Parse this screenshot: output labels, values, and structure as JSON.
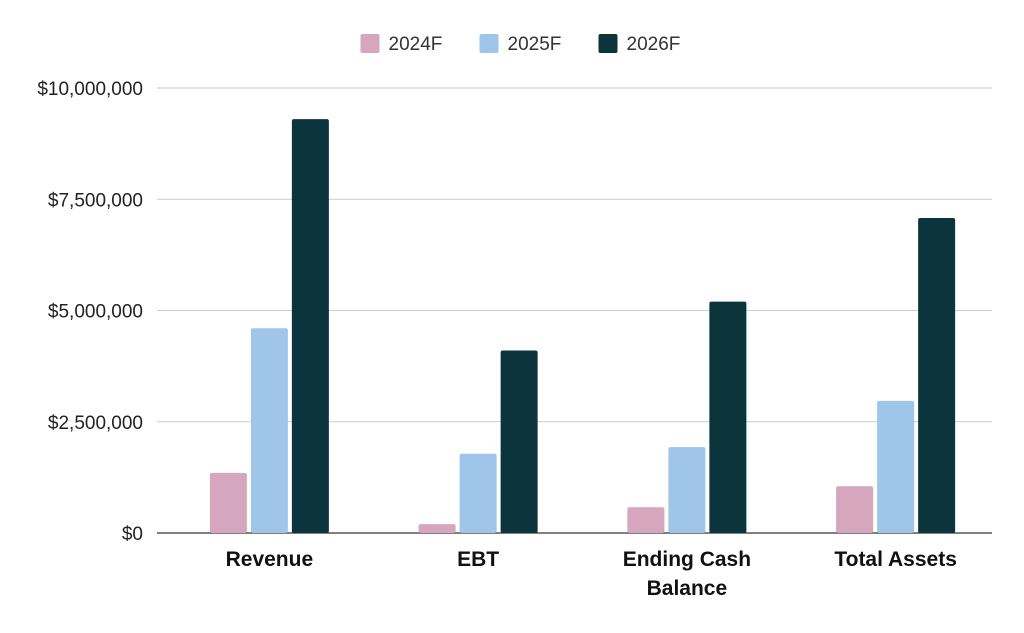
{
  "chart_data": {
    "type": "bar",
    "title": "",
    "xlabel": "",
    "ylabel": "",
    "categories": [
      [
        "Revenue"
      ],
      [
        "EBT"
      ],
      [
        "Ending Cash",
        "Balance"
      ],
      [
        "Total Assets"
      ]
    ],
    "series": [
      {
        "name": "2024F",
        "color": "#d5a6bd",
        "values": [
          1350000,
          200000,
          580000,
          1050000
        ]
      },
      {
        "name": "2025F",
        "color": "#9fc5e8",
        "values": [
          4600000,
          1780000,
          1930000,
          2970000
        ]
      },
      {
        "name": "2026F",
        "color": "#0c343d",
        "values": [
          9300000,
          4100000,
          5200000,
          7080000
        ]
      }
    ],
    "ylim": [
      0,
      10000000
    ],
    "yticks": [
      0,
      2500000,
      5000000,
      7500000,
      10000000
    ],
    "ytick_labels": [
      "$0",
      "$2,500,000",
      "$5,000,000",
      "$7,500,000",
      "$10,000,000"
    ],
    "grid": true,
    "legend_position": "top-center"
  }
}
